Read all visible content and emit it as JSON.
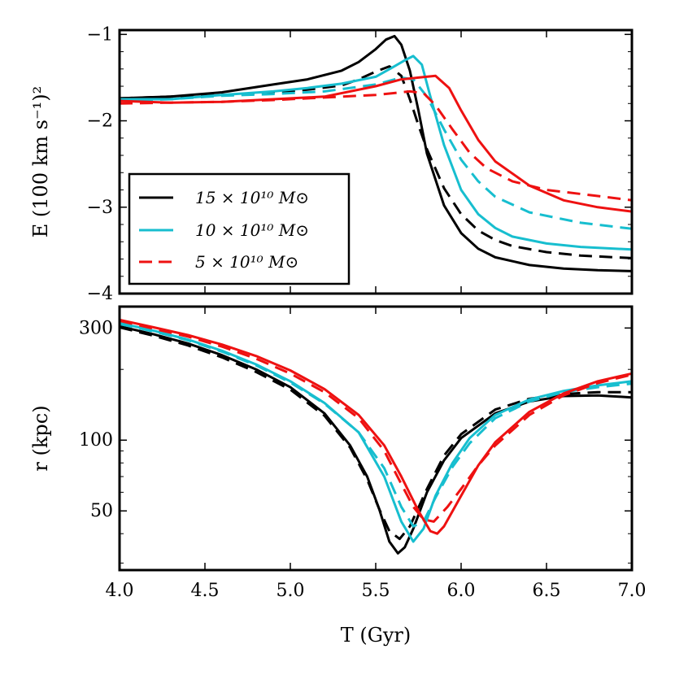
{
  "chart_data": [
    {
      "type": "line",
      "panel": "top",
      "ylabel": "E (100 km s⁻¹)²",
      "xlim": [
        4.0,
        7.0
      ],
      "ylim": [
        -4,
        -0.95
      ],
      "yticks": [
        -1,
        -2,
        -3,
        -4
      ],
      "ytick_labels": [
        "−1",
        "−2",
        "−3",
        "−4"
      ],
      "legend": {
        "position": "lower-left",
        "entries": [
          {
            "label": "15 × 10¹⁰ M⊙",
            "color": "#000000"
          },
          {
            "label": "10 × 10¹⁰ M⊙",
            "color": "#17becf"
          },
          {
            "label": "5 × 10¹⁰ M⊙",
            "color": "#ee1111"
          }
        ]
      },
      "series": [
        {
          "name": "15e10 solid",
          "color": "#000000",
          "dash": false,
          "x": [
            4.0,
            4.3,
            4.6,
            4.9,
            5.1,
            5.3,
            5.4,
            5.5,
            5.56,
            5.61,
            5.65,
            5.7,
            5.75,
            5.8,
            5.9,
            6.0,
            6.1,
            6.2,
            6.4,
            6.6,
            6.8,
            7.0
          ],
          "y": [
            -1.74,
            -1.72,
            -1.67,
            -1.58,
            -1.52,
            -1.42,
            -1.32,
            -1.17,
            -1.06,
            -1.02,
            -1.12,
            -1.42,
            -1.88,
            -2.38,
            -2.98,
            -3.3,
            -3.48,
            -3.58,
            -3.67,
            -3.71,
            -3.73,
            -3.74
          ]
        },
        {
          "name": "15e10 dashed",
          "color": "#000000",
          "dash": true,
          "x": [
            4.0,
            4.3,
            4.6,
            4.9,
            5.1,
            5.3,
            5.4,
            5.5,
            5.58,
            5.65,
            5.7,
            5.75,
            5.8,
            5.9,
            6.0,
            6.1,
            6.2,
            6.3,
            6.5,
            6.7,
            7.0
          ],
          "y": [
            -1.74,
            -1.72,
            -1.7,
            -1.67,
            -1.64,
            -1.59,
            -1.52,
            -1.43,
            -1.37,
            -1.48,
            -1.75,
            -2.05,
            -2.33,
            -2.78,
            -3.08,
            -3.27,
            -3.38,
            -3.45,
            -3.52,
            -3.56,
            -3.59
          ]
        },
        {
          "name": "10e10 solid",
          "color": "#17becf",
          "dash": false,
          "x": [
            4.0,
            4.3,
            4.6,
            4.9,
            5.1,
            5.3,
            5.5,
            5.6,
            5.67,
            5.72,
            5.77,
            5.82,
            5.9,
            6.0,
            6.1,
            6.2,
            6.3,
            6.5,
            6.7,
            7.0
          ],
          "y": [
            -1.75,
            -1.75,
            -1.7,
            -1.66,
            -1.62,
            -1.57,
            -1.49,
            -1.38,
            -1.3,
            -1.25,
            -1.35,
            -1.72,
            -2.28,
            -2.8,
            -3.08,
            -3.24,
            -3.34,
            -3.42,
            -3.46,
            -3.49
          ]
        },
        {
          "name": "10e10 dashed",
          "color": "#17becf",
          "dash": true,
          "x": [
            4.0,
            4.3,
            4.6,
            4.9,
            5.2,
            5.5,
            5.65,
            5.72,
            5.8,
            5.9,
            6.0,
            6.1,
            6.2,
            6.4,
            6.7,
            7.0
          ],
          "y": [
            -1.77,
            -1.75,
            -1.71,
            -1.69,
            -1.66,
            -1.58,
            -1.5,
            -1.52,
            -1.72,
            -2.1,
            -2.45,
            -2.7,
            -2.88,
            -3.06,
            -3.18,
            -3.25
          ]
        },
        {
          "name": "5e10 solid",
          "color": "#ee1111",
          "dash": false,
          "x": [
            4.0,
            4.3,
            4.6,
            4.9,
            5.2,
            5.5,
            5.65,
            5.75,
            5.85,
            5.93,
            6.0,
            6.1,
            6.2,
            6.4,
            6.6,
            6.8,
            7.0
          ],
          "y": [
            -1.77,
            -1.79,
            -1.78,
            -1.75,
            -1.72,
            -1.6,
            -1.52,
            -1.5,
            -1.48,
            -1.62,
            -1.88,
            -2.22,
            -2.47,
            -2.75,
            -2.92,
            -3.0,
            -3.05
          ]
        },
        {
          "name": "5e10 dashed",
          "color": "#ee1111",
          "dash": true,
          "x": [
            4.0,
            4.3,
            4.6,
            4.9,
            5.2,
            5.5,
            5.7,
            5.78,
            5.85,
            5.95,
            6.05,
            6.15,
            6.3,
            6.5,
            6.8,
            7.0
          ],
          "y": [
            -1.8,
            -1.79,
            -1.78,
            -1.76,
            -1.73,
            -1.7,
            -1.66,
            -1.68,
            -1.82,
            -2.1,
            -2.37,
            -2.55,
            -2.7,
            -2.8,
            -2.87,
            -2.92
          ]
        }
      ]
    },
    {
      "type": "line",
      "panel": "bottom",
      "ylabel": "r (kpc)",
      "xlabel": "T (Gyr)",
      "xlim": [
        4.0,
        7.0
      ],
      "ylim": [
        28,
        370
      ],
      "yscale": "log",
      "yticks": [
        50,
        100,
        300
      ],
      "xticks": [
        4.0,
        4.5,
        5.0,
        5.5,
        6.0,
        6.5,
        7.0
      ],
      "xtick_labels": [
        "4.0",
        "4.5",
        "5.0",
        "5.5",
        "6.0",
        "6.5",
        "7.0"
      ],
      "series": [
        {
          "name": "15e10 solid",
          "color": "#000000",
          "dash": false,
          "x": [
            4.0,
            4.2,
            4.4,
            4.6,
            4.8,
            5.0,
            5.2,
            5.35,
            5.45,
            5.52,
            5.58,
            5.63,
            5.67,
            5.72,
            5.8,
            5.9,
            6.0,
            6.2,
            6.4,
            6.6,
            6.8,
            7.0
          ],
          "y": [
            305,
            282,
            258,
            230,
            200,
            168,
            130,
            95,
            70,
            51,
            37,
            33,
            35,
            42,
            60,
            82,
            102,
            130,
            146,
            154,
            155,
            152
          ]
        },
        {
          "name": "15e10 dashed",
          "color": "#000000",
          "dash": true,
          "x": [
            4.0,
            4.2,
            4.4,
            4.6,
            4.8,
            5.0,
            5.2,
            5.35,
            5.45,
            5.52,
            5.58,
            5.64,
            5.7,
            5.8,
            5.9,
            6.0,
            6.2,
            6.4,
            6.6,
            6.8,
            7.0
          ],
          "y": [
            302,
            278,
            253,
            225,
            195,
            164,
            127,
            93,
            68,
            51,
            41,
            38,
            43,
            62,
            86,
            106,
            135,
            150,
            157,
            160,
            160
          ]
        },
        {
          "name": "10e10 solid",
          "color": "#17becf",
          "dash": false,
          "x": [
            4.0,
            4.2,
            4.4,
            4.6,
            4.8,
            5.0,
            5.2,
            5.4,
            5.55,
            5.65,
            5.72,
            5.78,
            5.85,
            5.95,
            6.05,
            6.2,
            6.4,
            6.6,
            6.8,
            7.0
          ],
          "y": [
            315,
            292,
            268,
            240,
            210,
            178,
            144,
            108,
            70,
            45,
            37,
            42,
            58,
            80,
            102,
            128,
            149,
            162,
            171,
            178
          ]
        },
        {
          "name": "10e10 dashed",
          "color": "#17becf",
          "dash": true,
          "x": [
            4.0,
            4.2,
            4.4,
            4.6,
            4.8,
            5.0,
            5.2,
            5.4,
            5.55,
            5.65,
            5.72,
            5.78,
            5.85,
            5.95,
            6.05,
            6.2,
            6.4,
            6.6,
            6.8,
            7.0
          ],
          "y": [
            312,
            290,
            266,
            238,
            208,
            176,
            143,
            108,
            76,
            52,
            43,
            45,
            57,
            77,
            97,
            124,
            146,
            160,
            168,
            174
          ]
        },
        {
          "name": "5e10 solid",
          "color": "#ee1111",
          "dash": false,
          "x": [
            4.0,
            4.2,
            4.4,
            4.6,
            4.8,
            5.0,
            5.2,
            5.4,
            5.55,
            5.65,
            5.75,
            5.82,
            5.86,
            5.9,
            6.0,
            6.1,
            6.2,
            6.4,
            6.6,
            6.8,
            7.0
          ],
          "y": [
            325,
            302,
            280,
            255,
            228,
            198,
            165,
            128,
            95,
            70,
            50,
            41,
            40,
            43,
            58,
            78,
            98,
            132,
            158,
            178,
            192
          ]
        },
        {
          "name": "5e10 dashed",
          "color": "#ee1111",
          "dash": true,
          "x": [
            4.0,
            4.2,
            4.4,
            4.6,
            4.8,
            5.0,
            5.2,
            5.4,
            5.55,
            5.65,
            5.72,
            5.78,
            5.84,
            5.92,
            6.0,
            6.1,
            6.2,
            6.4,
            6.6,
            6.8,
            7.0
          ],
          "y": [
            322,
            298,
            276,
            250,
            222,
            192,
            160,
            124,
            90,
            65,
            52,
            46,
            45,
            52,
            62,
            78,
            95,
            128,
            155,
            175,
            190
          ]
        }
      ]
    }
  ]
}
